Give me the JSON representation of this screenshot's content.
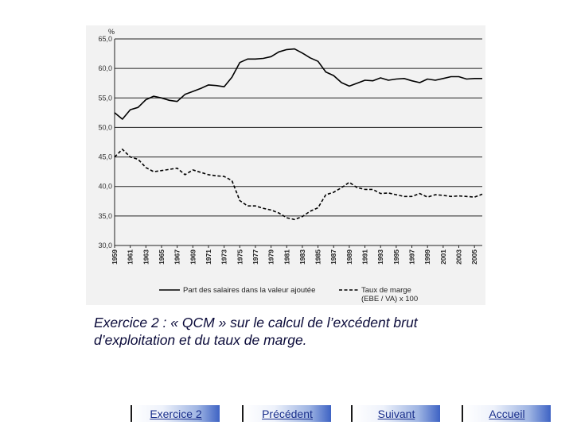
{
  "slide": {
    "caption_line1": "Exercice 2 :  « QCM » sur le calcul de l’excédent brut",
    "caption_line2": "d’exploitation et du taux de marge."
  },
  "nav": {
    "exercise": "Exercice 2",
    "previous": "Précédent",
    "next": "Suivant",
    "home": "Accueil"
  },
  "chart_data": {
    "type": "line",
    "title": "",
    "xlabel": "",
    "ylabel": "%",
    "ylim": [
      30,
      65
    ],
    "xlim": [
      1959,
      2006
    ],
    "yticks": [
      "30,0",
      "35,0",
      "40,0",
      "45,0",
      "50,0",
      "55,0",
      "60,0",
      "65,0"
    ],
    "ytick_values": [
      30,
      35,
      40,
      45,
      50,
      55,
      60,
      65
    ],
    "xticks": [
      "1959",
      "1961",
      "1963",
      "1965",
      "1967",
      "1969",
      "1971",
      "1973",
      "1975",
      "1977",
      "1979",
      "1981",
      "1983",
      "1985",
      "1987",
      "1989",
      "1991",
      "1993",
      "1995",
      "1997",
      "1999",
      "2001",
      "2003",
      "2005"
    ],
    "grid": "horizontal",
    "legend_position": "bottom",
    "x": [
      1959,
      1960,
      1961,
      1962,
      1963,
      1964,
      1965,
      1966,
      1967,
      1968,
      1969,
      1970,
      1971,
      1972,
      1973,
      1974,
      1975,
      1976,
      1977,
      1978,
      1979,
      1980,
      1981,
      1982,
      1983,
      1984,
      1985,
      1986,
      1987,
      1988,
      1989,
      1990,
      1991,
      1992,
      1993,
      1994,
      1995,
      1996,
      1997,
      1998,
      1999,
      2000,
      2001,
      2002,
      2003,
      2004,
      2005,
      2006
    ],
    "series": [
      {
        "name": "Part des salaires  dans la valeur ajoutée",
        "style": "solid",
        "color": "#000000",
        "values": [
          52.5,
          51.4,
          53.0,
          53.4,
          54.7,
          55.3,
          55.0,
          54.6,
          54.4,
          55.6,
          56.1,
          56.6,
          57.2,
          57.1,
          56.9,
          58.5,
          61.0,
          61.6,
          61.6,
          61.7,
          62.0,
          62.8,
          63.2,
          63.3,
          62.6,
          61.8,
          61.2,
          59.4,
          58.8,
          57.6,
          57.0,
          57.5,
          58.0,
          57.9,
          58.4,
          58.0,
          58.2,
          58.3,
          57.9,
          57.6,
          58.2,
          58.0,
          58.3,
          58.6,
          58.6,
          58.2,
          58.3,
          58.3
        ]
      },
      {
        "name": "Taux de marge (EBE / VA) x 100",
        "style": "dashed",
        "color": "#000000",
        "values": [
          45.0,
          46.3,
          45.0,
          44.6,
          43.2,
          42.5,
          42.7,
          42.9,
          43.1,
          42.0,
          42.8,
          42.4,
          42.0,
          41.8,
          41.7,
          41.0,
          37.6,
          36.7,
          36.7,
          36.3,
          36.0,
          35.5,
          34.7,
          34.4,
          34.9,
          35.8,
          36.4,
          38.6,
          39.0,
          39.8,
          40.7,
          39.8,
          39.5,
          39.5,
          38.8,
          38.9,
          38.6,
          38.3,
          38.3,
          38.8,
          38.2,
          38.6,
          38.5,
          38.3,
          38.4,
          38.3,
          38.2,
          38.7
        ]
      }
    ]
  }
}
